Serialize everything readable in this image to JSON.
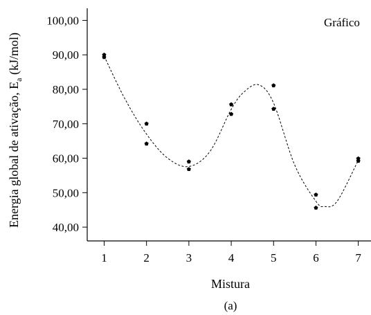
{
  "chart_data": {
    "type": "scatter",
    "title": "",
    "annotation": "Gráfico",
    "xlabel": "Mistura",
    "ylabel_main": "Energia global de ativação, E",
    "ylabel_sub": "a",
    "ylabel_unit": " (kJ/mol)",
    "caption": "(a)",
    "x_ticks": [
      "1",
      "2",
      "3",
      "4",
      "5",
      "6",
      "7"
    ],
    "y_ticks": [
      "40,00",
      "50,00",
      "60,00",
      "70,00",
      "80,00",
      "90,00",
      "100,00"
    ],
    "xlim": [
      0.6,
      7.3
    ],
    "ylim": [
      36,
      103.5
    ],
    "grid": false,
    "legend": "none",
    "colors": {
      "points": "#000000",
      "curve": "#000000"
    },
    "points": [
      {
        "x": 1,
        "y": 90.0
      },
      {
        "x": 1,
        "y": 89.3
      },
      {
        "x": 2,
        "y": 70.0
      },
      {
        "x": 2,
        "y": 64.2
      },
      {
        "x": 3,
        "y": 59.0
      },
      {
        "x": 3,
        "y": 56.8
      },
      {
        "x": 4,
        "y": 75.6
      },
      {
        "x": 4,
        "y": 72.8
      },
      {
        "x": 5,
        "y": 81.1
      },
      {
        "x": 5,
        "y": 74.3
      },
      {
        "x": 6,
        "y": 49.4
      },
      {
        "x": 6,
        "y": 45.6
      },
      {
        "x": 7,
        "y": 59.9
      },
      {
        "x": 7,
        "y": 59.2
      }
    ],
    "fit_curve": {
      "style": "dashed",
      "x": [
        1.0,
        1.5,
        2.0,
        2.5,
        3.0,
        3.5,
        4.0,
        4.3,
        4.65,
        5.0,
        5.5,
        6.0,
        6.2,
        6.5,
        7.0
      ],
      "y": [
        89.6,
        77.0,
        67.0,
        60.0,
        57.6,
        62.0,
        74.2,
        79.2,
        81.3,
        76.0,
        58.0,
        47.5,
        46.0,
        47.5,
        59.4
      ]
    }
  }
}
